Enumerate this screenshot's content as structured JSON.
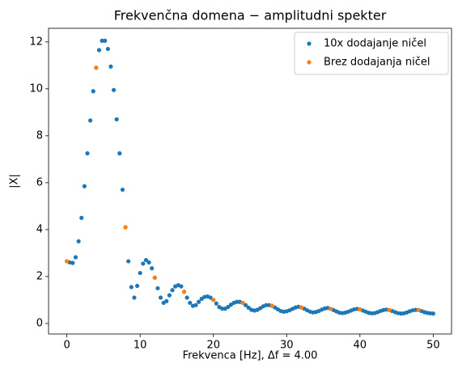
{
  "chart_data": {
    "type": "scatter",
    "title": "Frekvenčna domena − amplitudni spekter",
    "x_label": "Frekvenca [Hz], Δf = 4.00",
    "y_label": "|X|",
    "xlim": [
      -2.5,
      52.5
    ],
    "ylim": [
      -0.45,
      12.58
    ],
    "xticks": [
      0,
      10,
      20,
      30,
      40,
      50
    ],
    "yticks": [
      0,
      2,
      4,
      6,
      8,
      10,
      12
    ],
    "legend": "upper right",
    "series": [
      {
        "name": "10x dodajanje ničel",
        "color": "#1f77b4",
        "x": [
          0,
          0.4,
          0.8,
          1.2,
          1.6,
          2,
          2.4,
          2.8,
          3.2,
          3.6,
          4,
          4.4,
          4.8,
          5.2,
          5.6,
          6,
          6.4,
          6.8,
          7.2,
          7.6,
          8,
          8.4,
          8.8,
          9.2,
          9.6,
          10,
          10.4,
          10.8,
          11.2,
          11.6,
          12,
          12.4,
          12.8,
          13.2,
          13.6,
          14,
          14.4,
          14.8,
          15.2,
          15.6,
          16,
          16.4,
          16.8,
          17.2,
          17.6,
          18,
          18.4,
          18.8,
          19.2,
          19.6,
          20,
          20.4,
          20.8,
          21.2,
          21.6,
          22,
          22.4,
          22.8,
          23.2,
          23.6,
          24,
          24.4,
          24.8,
          25.2,
          25.6,
          26,
          26.4,
          26.8,
          27.2,
          27.6,
          28,
          28.4,
          28.8,
          29.2,
          29.6,
          30,
          30.4,
          30.8,
          31.2,
          31.6,
          32,
          32.4,
          32.8,
          33.2,
          33.6,
          34,
          34.4,
          34.8,
          35.2,
          35.6,
          36,
          36.4,
          36.8,
          37.2,
          37.6,
          38,
          38.4,
          38.8,
          39.2,
          39.6,
          40,
          40.4,
          40.8,
          41.2,
          41.6,
          42,
          42.4,
          42.8,
          43.2,
          43.6,
          44,
          44.4,
          44.8,
          45.2,
          45.6,
          46,
          46.4,
          46.8,
          47.2,
          47.6,
          48,
          48.4,
          48.8,
          49.2,
          49.6,
          50
        ],
        "values": [
          2.65,
          2.6,
          2.58,
          2.82,
          3.5,
          4.5,
          5.85,
          7.25,
          8.65,
          9.9,
          10.9,
          11.65,
          12.05,
          12.05,
          11.7,
          10.95,
          9.95,
          8.7,
          7.25,
          5.7,
          4.1,
          2.65,
          1.55,
          1.1,
          1.6,
          2.15,
          2.55,
          2.7,
          2.6,
          2.35,
          1.95,
          1.5,
          1.1,
          0.88,
          0.95,
          1.2,
          1.42,
          1.58,
          1.63,
          1.58,
          1.35,
          1.1,
          0.88,
          0.75,
          0.78,
          0.92,
          1.05,
          1.13,
          1.15,
          1.1,
          1.0,
          0.85,
          0.7,
          0.63,
          0.63,
          0.7,
          0.8,
          0.88,
          0.92,
          0.92,
          0.88,
          0.78,
          0.67,
          0.58,
          0.55,
          0.58,
          0.65,
          0.73,
          0.78,
          0.78,
          0.75,
          0.68,
          0.6,
          0.53,
          0.5,
          0.52,
          0.56,
          0.62,
          0.68,
          0.71,
          0.68,
          0.63,
          0.56,
          0.5,
          0.47,
          0.49,
          0.53,
          0.59,
          0.64,
          0.66,
          0.62,
          0.57,
          0.51,
          0.46,
          0.44,
          0.46,
          0.5,
          0.55,
          0.6,
          0.62,
          0.6,
          0.55,
          0.5,
          0.45,
          0.43,
          0.44,
          0.48,
          0.53,
          0.57,
          0.59,
          0.57,
          0.53,
          0.48,
          0.44,
          0.42,
          0.43,
          0.47,
          0.52,
          0.56,
          0.58,
          0.57,
          0.53,
          0.48,
          0.45,
          0.43,
          0.42
        ]
      },
      {
        "name": "Brez dodajanja ničel",
        "color": "#ff7f0e",
        "x": [
          0,
          4,
          8,
          12,
          16,
          20,
          24,
          28,
          32,
          36,
          40,
          44,
          48
        ],
        "values": [
          2.65,
          10.9,
          4.1,
          1.95,
          1.35,
          1.0,
          0.88,
          0.75,
          0.68,
          0.62,
          0.6,
          0.57,
          0.57
        ]
      }
    ]
  }
}
